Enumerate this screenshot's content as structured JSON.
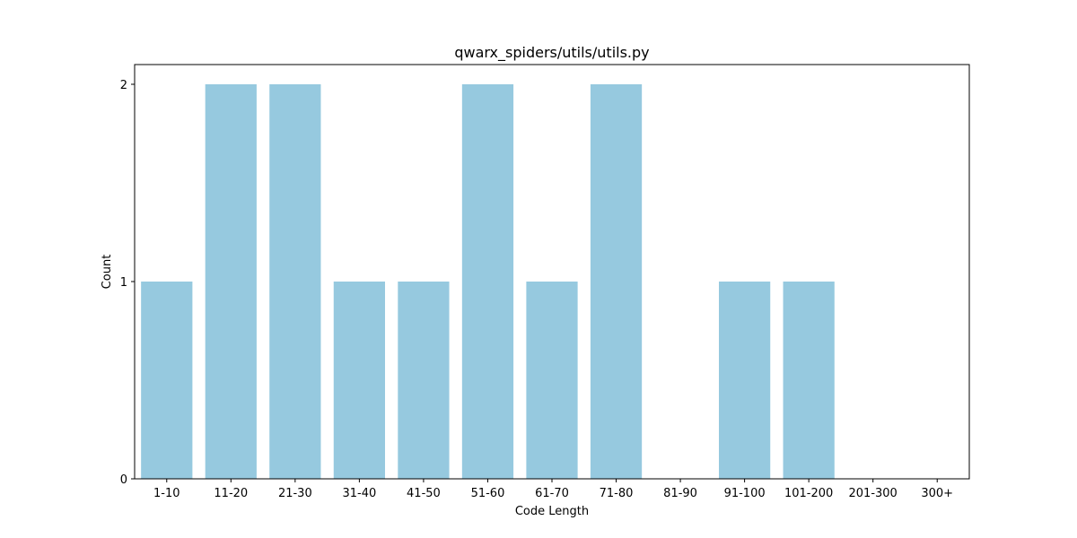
{
  "chart_data": {
    "type": "bar",
    "title": "qwarx_spiders/utils/utils.py",
    "xlabel": "Code Length",
    "ylabel": "Count",
    "categories": [
      "1-10",
      "11-20",
      "21-30",
      "31-40",
      "41-50",
      "51-60",
      "61-70",
      "71-80",
      "81-90",
      "91-100",
      "101-200",
      "201-300",
      "300+"
    ],
    "values": [
      1,
      2,
      2,
      1,
      1,
      2,
      1,
      2,
      0,
      1,
      1,
      0,
      0
    ],
    "ylim": [
      0,
      2.1
    ],
    "yticks": [
      "0",
      "1",
      "2"
    ],
    "bar_color": "#96c9df",
    "grid": false,
    "legend": "none"
  }
}
